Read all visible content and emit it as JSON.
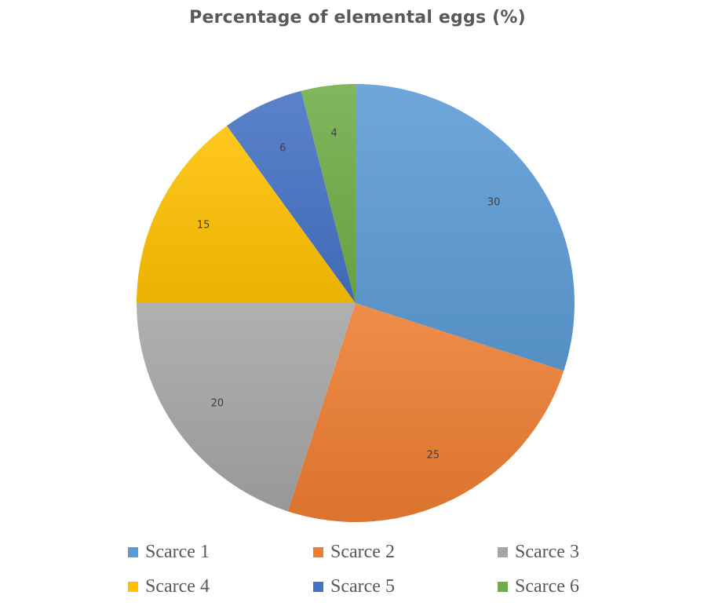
{
  "chart_data": {
    "type": "pie",
    "title": "Percentage of elemental eggs (%)",
    "categories": [
      "Scarce 1",
      "Scarce 2",
      "Scarce 3",
      "Scarce 4",
      "Scarce 5",
      "Scarce 6"
    ],
    "values": [
      30,
      25,
      20,
      15,
      6,
      4
    ],
    "data_labels": [
      "30",
      "25",
      "20",
      "15",
      "6",
      "4"
    ],
    "colors": [
      "#5B9BD5",
      "#ED7D31",
      "#A5A5A5",
      "#FFC000",
      "#4472C4",
      "#70AD47"
    ],
    "start_angle": "12 o'clock",
    "direction": "clockwise",
    "legend_position": "bottom"
  },
  "legend": {
    "items": [
      {
        "label": "Scarce 1",
        "color": "#5B9BD5"
      },
      {
        "label": "Scarce 2",
        "color": "#ED7D31"
      },
      {
        "label": "Scarce 3",
        "color": "#A5A5A5"
      },
      {
        "label": "Scarce 4",
        "color": "#FFC000"
      },
      {
        "label": "Scarce 5",
        "color": "#4472C4"
      },
      {
        "label": "Scarce 6",
        "color": "#70AD47"
      }
    ]
  }
}
